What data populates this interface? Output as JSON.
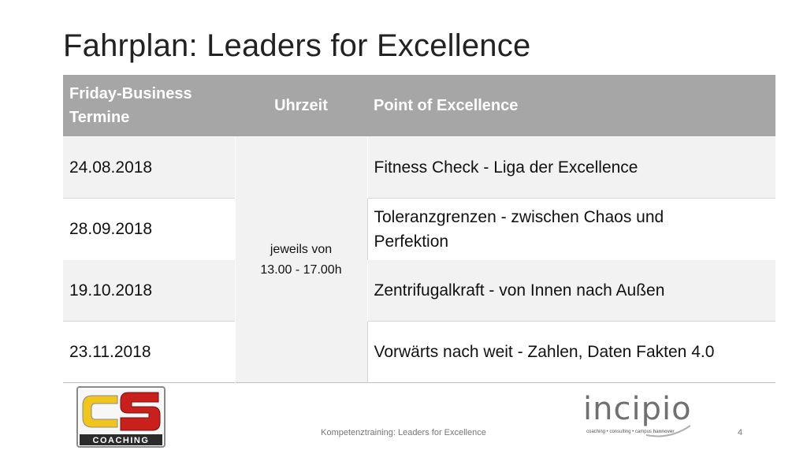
{
  "slide": {
    "title": "Fahrplan: Leaders for Excellence"
  },
  "table": {
    "headers": {
      "col1_line1": "Friday-Business",
      "col1_line2": "Termine",
      "col2": "Uhrzeit",
      "col3": "Point of Excellence"
    },
    "time_line1": "jeweils von",
    "time_line2": "13.00 - 17.00h",
    "rows": [
      {
        "date": "24.08.2018",
        "topic_line1": "Fitness Check - Liga der Excellence",
        "topic_line2": ""
      },
      {
        "date": "28.09.2018",
        "topic_line1": "Toleranzgrenzen - zwischen Chaos und",
        "topic_line2": "Perfektion"
      },
      {
        "date": "19.10.2018",
        "topic_line1": "Zentrifugalkraft - von Innen nach Außen",
        "topic_line2": ""
      },
      {
        "date": "23.11.2018",
        "topic_line1": "Vorwärts nach weit - Zahlen, Daten Fakten 4.0",
        "topic_line2": ""
      }
    ]
  },
  "logos": {
    "cs_letters": "CS",
    "cs_word": "COACHING",
    "incipio_word": "incipio",
    "incipio_tagline": "coaching • consulting • campus",
    "incipio_city": "hannover",
    "colors": {
      "cs_yellow": "#f2c51c",
      "cs_red": "#c9201b",
      "cs_frame": "#8a8a8a",
      "incipio_gray": "#707070"
    }
  },
  "footer": {
    "text": "Kompetenztraining: Leaders for Excellence",
    "page_number": "4"
  }
}
